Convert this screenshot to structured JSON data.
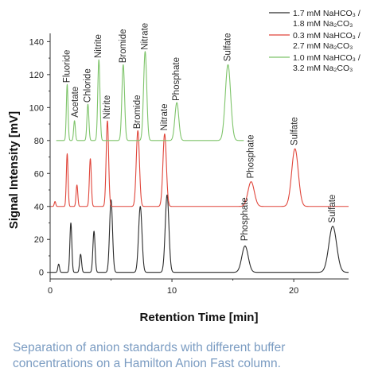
{
  "chart_data": {
    "type": "line",
    "xlabel": "Retention Time [min]",
    "ylabel": "Signal Intensity [mV]",
    "xlim": [
      0,
      24.5
    ],
    "ylim": [
      -4,
      145
    ],
    "xticks": [
      0,
      10,
      20
    ],
    "yticks": [
      0,
      20,
      40,
      60,
      80,
      100,
      120,
      140
    ],
    "grid": false,
    "legend_position": "top-right",
    "legend": [
      {
        "line1": "1.7 mM NaHCO₃ /",
        "line2": "1.8 mM Na₂CO₃",
        "color": "#2b2b2b"
      },
      {
        "line1": "0.3 mM NaHCO₃ /",
        "line2": "2.7 mM Na₂CO₃",
        "color": "#e0453a"
      },
      {
        "line1": "1.0 mM NaHCO₃ /",
        "line2": "3.2 mM Na₂CO₃",
        "color": "#7ec46a"
      }
    ],
    "series": [
      {
        "color": "#2b2b2b",
        "baseline": 0,
        "x_end": 24.5,
        "peaks": [
          {
            "x": 0.7,
            "height": 5,
            "width": 0.07
          },
          {
            "x": 1.7,
            "height": 30,
            "width": 0.08
          },
          {
            "x": 2.5,
            "height": 11,
            "width": 0.08
          },
          {
            "x": 3.6,
            "height": 25,
            "width": 0.09
          },
          {
            "x": 5.0,
            "height": 44,
            "width": 0.12
          },
          {
            "x": 7.4,
            "height": 40,
            "width": 0.14
          },
          {
            "x": 9.6,
            "height": 47,
            "width": 0.15
          },
          {
            "x": 16.0,
            "height": 16,
            "width": 0.26
          },
          {
            "x": 23.2,
            "height": 28,
            "width": 0.32
          }
        ]
      },
      {
        "color": "#e0453a",
        "baseline": 40,
        "x_end": 24.5,
        "peaks": [
          {
            "x": 0.4,
            "height": 3,
            "width": 0.06
          },
          {
            "x": 1.4,
            "height": 32,
            "width": 0.07
          },
          {
            "x": 2.2,
            "height": 13,
            "width": 0.07
          },
          {
            "x": 3.3,
            "height": 29,
            "width": 0.08
          },
          {
            "x": 4.7,
            "height": 52,
            "width": 0.1
          },
          {
            "x": 7.2,
            "height": 46,
            "width": 0.13
          },
          {
            "x": 9.4,
            "height": 44,
            "width": 0.14
          },
          {
            "x": 16.5,
            "height": 15,
            "width": 0.26
          },
          {
            "x": 20.1,
            "height": 35,
            "width": 0.27
          }
        ]
      },
      {
        "color": "#7ec46a",
        "baseline": 80,
        "x_start": 0.5,
        "x_end": 15.9,
        "peaks": [
          {
            "x": 1.4,
            "height": 34,
            "width": 0.07
          },
          {
            "x": 2.0,
            "height": 12,
            "width": 0.07
          },
          {
            "x": 3.1,
            "height": 22,
            "width": 0.08
          },
          {
            "x": 4.0,
            "height": 49,
            "width": 0.09
          },
          {
            "x": 6.0,
            "height": 46,
            "width": 0.11
          },
          {
            "x": 7.8,
            "height": 54,
            "width": 0.13
          },
          {
            "x": 10.4,
            "height": 23,
            "width": 0.16
          },
          {
            "x": 14.6,
            "height": 46,
            "width": 0.22
          }
        ]
      }
    ],
    "annotations": [
      {
        "text": "Fluoride",
        "x": 1.4,
        "y": 115,
        "color": "#2b2b2b"
      },
      {
        "text": "Acetate",
        "x": 2.1,
        "y": 94,
        "color": "#2b2b2b"
      },
      {
        "text": "Chloride",
        "x": 3.1,
        "y": 103,
        "color": "#2b2b2b"
      },
      {
        "text": "Nitrite",
        "x": 4.0,
        "y": 130,
        "color": "#2b2b2b"
      },
      {
        "text": "Bromide",
        "x": 6.0,
        "y": 127,
        "color": "#2b2b2b"
      },
      {
        "text": "Nitrate",
        "x": 7.8,
        "y": 135,
        "color": "#2b2b2b"
      },
      {
        "text": "Phosphate",
        "x": 10.4,
        "y": 104,
        "color": "#2b2b2b"
      },
      {
        "text": "Sulfate",
        "x": 14.6,
        "y": 128,
        "color": "#2b2b2b"
      },
      {
        "text": "Nitrite",
        "x": 4.7,
        "y": 93,
        "color": "#2b2b2b"
      },
      {
        "text": "Bromide",
        "x": 7.2,
        "y": 87,
        "color": "#2b2b2b"
      },
      {
        "text": "Nitrate",
        "x": 9.4,
        "y": 86,
        "color": "#2b2b2b"
      },
      {
        "text": "Phosphate",
        "x": 16.5,
        "y": 57,
        "color": "#2b2b2b"
      },
      {
        "text": "Sulfate",
        "x": 20.1,
        "y": 77,
        "color": "#2b2b2b"
      },
      {
        "text": "Phosphate",
        "x": 16.0,
        "y": 19,
        "color": "#2b2b2b"
      },
      {
        "text": "Sulfate",
        "x": 23.2,
        "y": 30,
        "color": "#2b2b2b"
      }
    ]
  },
  "caption": {
    "line1": "Separation of anion standards with different buffer",
    "line2": "concentrations on a Hamilton Anion Fast column."
  }
}
